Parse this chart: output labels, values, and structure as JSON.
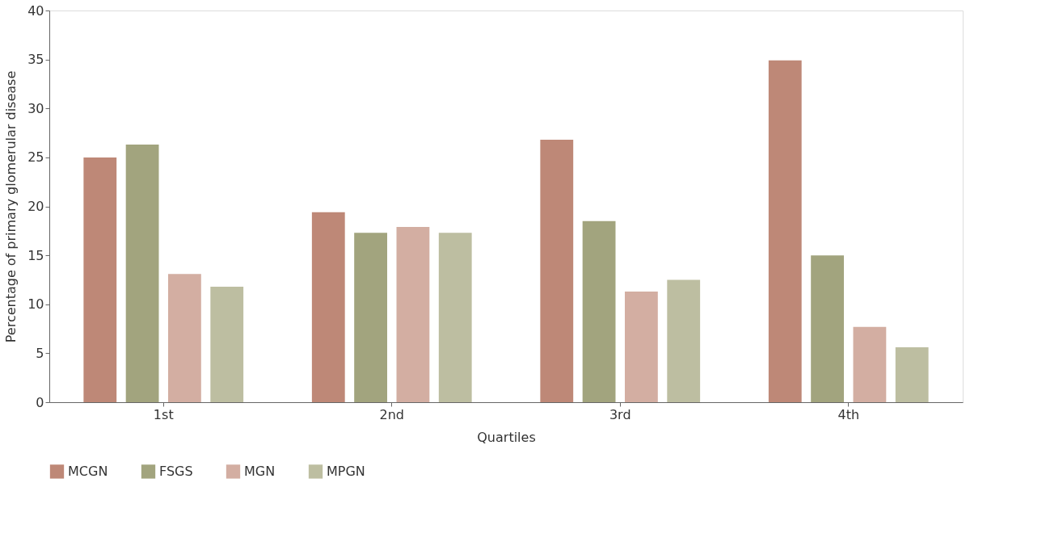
{
  "chart_data": {
    "type": "bar",
    "xlabel": "Quartiles",
    "ylabel": "Percentage of primary glomerular disease",
    "categories": [
      "1st",
      "2nd",
      "3rd",
      "4th"
    ],
    "series": [
      {
        "name": "MCGN",
        "color": "#be8877",
        "values": [
          25.0,
          19.4,
          26.8,
          34.9
        ]
      },
      {
        "name": "FSGS",
        "color": "#a2a47e",
        "values": [
          26.3,
          17.3,
          18.5,
          15.0
        ]
      },
      {
        "name": "MGN",
        "color": "#d3aea2",
        "values": [
          13.1,
          17.9,
          11.3,
          7.7
        ]
      },
      {
        "name": "MPGN",
        "color": "#bdbea1",
        "values": [
          11.8,
          17.3,
          12.5,
          5.6
        ]
      }
    ],
    "ylim": [
      0,
      40
    ],
    "yticks": [
      0,
      5,
      10,
      15,
      20,
      25,
      30,
      35,
      40
    ],
    "grid": false,
    "legend": "bottom left"
  }
}
